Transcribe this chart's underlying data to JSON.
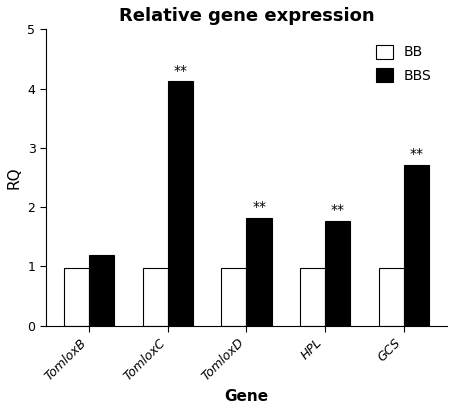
{
  "title": "Relative gene expression",
  "xlabel": "Gene",
  "ylabel": "RQ",
  "categories": [
    "TomloxB",
    "TomloxC",
    "TomloxD",
    "HPL",
    "GCS"
  ],
  "bb_values": [
    0.97,
    0.97,
    0.97,
    0.97,
    0.97
  ],
  "bbs_values": [
    1.2,
    4.12,
    1.82,
    1.77,
    2.71
  ],
  "bb_color": "white",
  "bbs_color": "black",
  "bar_edge_color": "black",
  "ylim": [
    0,
    5
  ],
  "yticks": [
    0,
    1,
    2,
    3,
    4,
    5
  ],
  "bar_width": 0.32,
  "significance": [
    false,
    true,
    true,
    true,
    true
  ],
  "sig_label": "**",
  "legend_labels": [
    "BB",
    "BBS"
  ],
  "title_fontsize": 13,
  "axis_fontsize": 11,
  "tick_fontsize": 9,
  "sig_fontsize": 10,
  "fig_width": 4.54,
  "fig_height": 4.11,
  "dpi": 100
}
